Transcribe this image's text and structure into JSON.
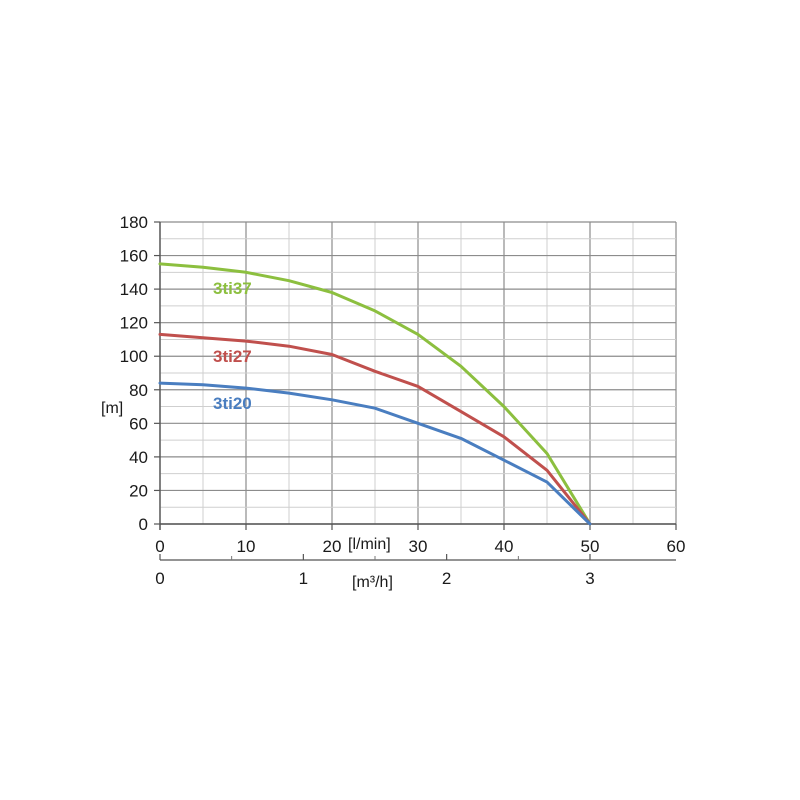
{
  "chart_data": {
    "type": "line",
    "ylabel": "[m]",
    "xlabel": "[l/min]",
    "x2label": "[m³/h]",
    "ylim": [
      0,
      180
    ],
    "xlim": [
      0,
      60
    ],
    "yticks": [
      0,
      20,
      40,
      60,
      80,
      100,
      120,
      140,
      160,
      180
    ],
    "xticks": [
      0,
      10,
      20,
      30,
      40,
      50,
      60
    ],
    "x2ticks": [
      {
        "label": "0",
        "value": 0
      },
      {
        "label": "1",
        "value": 16.67
      },
      {
        "label": "2",
        "value": 33.33
      },
      {
        "label": "3",
        "value": 50
      }
    ],
    "grid": true,
    "series": [
      {
        "name": "3ti37",
        "color": "#8cbf3f",
        "points": [
          [
            0,
            155
          ],
          [
            5,
            153
          ],
          [
            10,
            150
          ],
          [
            15,
            145
          ],
          [
            20,
            138
          ],
          [
            25,
            127
          ],
          [
            30,
            113
          ],
          [
            35,
            94
          ],
          [
            40,
            70
          ],
          [
            45,
            42
          ],
          [
            50,
            0
          ]
        ]
      },
      {
        "name": "3ti27",
        "color": "#c0504d",
        "points": [
          [
            0,
            113
          ],
          [
            5,
            111
          ],
          [
            10,
            109
          ],
          [
            15,
            106
          ],
          [
            20,
            101
          ],
          [
            25,
            91
          ],
          [
            30,
            82
          ],
          [
            35,
            67
          ],
          [
            40,
            52
          ],
          [
            45,
            32
          ],
          [
            50,
            0
          ]
        ]
      },
      {
        "name": "3ti20",
        "color": "#4a7ec0",
        "points": [
          [
            0,
            84
          ],
          [
            5,
            83
          ],
          [
            10,
            81
          ],
          [
            15,
            78
          ],
          [
            20,
            74
          ],
          [
            25,
            69
          ],
          [
            30,
            60
          ],
          [
            35,
            51
          ],
          [
            40,
            38
          ],
          [
            45,
            25
          ],
          [
            50,
            0
          ]
        ]
      }
    ]
  }
}
